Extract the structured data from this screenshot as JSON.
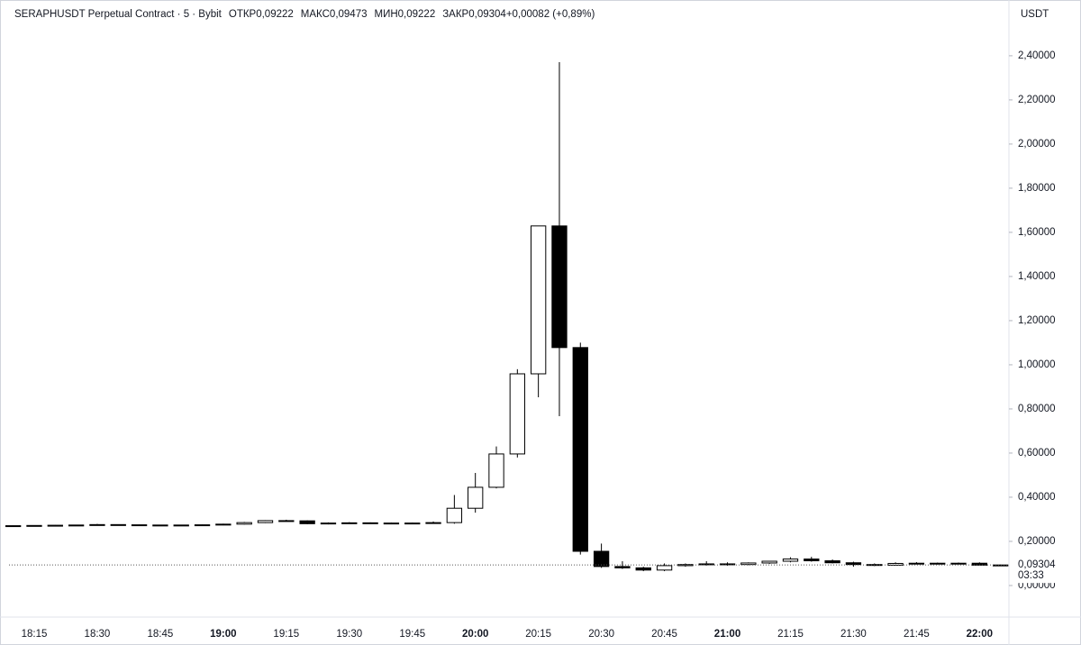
{
  "chart_data": {
    "type": "candlestick",
    "title": "SERAPHUSDT Perpetual Contract · 5 · Bybit",
    "ohlc_header": [
      {
        "label": "ОТКР",
        "value": "0,09222"
      },
      {
        "label": "МАКС",
        "value": "0,09473"
      },
      {
        "label": "МИН",
        "value": "0,09222"
      },
      {
        "label": "ЗАКР",
        "value": "0,09304"
      },
      {
        "label": "",
        "value": "+0,00082 (+0,89%)"
      }
    ],
    "currency": "USDT",
    "up_color": "#ffffff",
    "down_color": "#000000",
    "x": [
      "18:10",
      "18:15",
      "18:20",
      "18:25",
      "18:30",
      "18:35",
      "18:40",
      "18:45",
      "18:50",
      "18:55",
      "19:00",
      "19:05",
      "19:10",
      "19:15",
      "19:20",
      "19:25",
      "19:30",
      "19:35",
      "19:40",
      "19:45",
      "19:50",
      "19:55",
      "20:00",
      "20:05",
      "20:10",
      "20:15",
      "20:20",
      "20:25",
      "20:30",
      "20:35",
      "20:40",
      "20:45",
      "20:50",
      "20:55",
      "21:00",
      "21:05",
      "21:10",
      "21:15",
      "21:20",
      "21:25",
      "21:30",
      "21:35",
      "21:40",
      "21:45",
      "21:50",
      "21:55",
      "22:00",
      "22:05"
    ],
    "open": [
      0.27,
      0.271,
      0.272,
      0.273,
      0.274,
      0.276,
      0.275,
      0.274,
      0.273,
      0.274,
      0.275,
      0.278,
      0.285,
      0.294,
      0.293,
      0.28,
      0.283,
      0.284,
      0.283,
      0.282,
      0.283,
      0.285,
      0.35,
      0.445,
      0.596,
      0.959,
      1.629,
      1.078,
      0.155,
      0.086,
      0.08,
      0.07,
      0.09,
      0.095,
      0.098,
      0.095,
      0.102,
      0.11,
      0.12,
      0.112,
      0.103,
      0.095,
      0.092,
      0.1,
      0.101,
      0.099,
      0.101,
      0.09222
    ],
    "high": [
      0.272,
      0.273,
      0.274,
      0.275,
      0.279,
      0.277,
      0.276,
      0.275,
      0.275,
      0.276,
      0.28,
      0.288,
      0.296,
      0.298,
      0.295,
      0.286,
      0.287,
      0.286,
      0.285,
      0.285,
      0.29,
      0.41,
      0.51,
      0.63,
      0.98,
      1.629,
      2.371,
      1.1,
      0.19,
      0.11,
      0.085,
      0.1,
      0.1,
      0.11,
      0.105,
      0.105,
      0.112,
      0.128,
      0.13,
      0.118,
      0.108,
      0.1,
      0.105,
      0.106,
      0.104,
      0.104,
      0.105,
      0.09473
    ],
    "low": [
      0.268,
      0.269,
      0.27,
      0.271,
      0.272,
      0.273,
      0.272,
      0.272,
      0.271,
      0.272,
      0.273,
      0.276,
      0.283,
      0.29,
      0.278,
      0.277,
      0.28,
      0.281,
      0.28,
      0.28,
      0.281,
      0.28,
      0.33,
      0.44,
      0.58,
      0.853,
      0.767,
      0.14,
      0.08,
      0.075,
      0.065,
      0.065,
      0.085,
      0.09,
      0.09,
      0.092,
      0.098,
      0.105,
      0.108,
      0.1,
      0.085,
      0.088,
      0.09,
      0.096,
      0.095,
      0.096,
      0.092,
      0.09222
    ],
    "close": [
      0.271,
      0.272,
      0.273,
      0.274,
      0.276,
      0.275,
      0.274,
      0.273,
      0.274,
      0.275,
      0.278,
      0.285,
      0.294,
      0.293,
      0.28,
      0.283,
      0.284,
      0.283,
      0.282,
      0.283,
      0.285,
      0.35,
      0.445,
      0.596,
      0.959,
      1.629,
      1.078,
      0.155,
      0.086,
      0.08,
      0.07,
      0.09,
      0.095,
      0.098,
      0.095,
      0.102,
      0.11,
      0.12,
      0.112,
      0.103,
      0.095,
      0.092,
      0.1,
      0.101,
      0.099,
      0.101,
      0.09222,
      0.09304
    ],
    "xlim": [
      "18:09",
      "22:07"
    ],
    "xticks": [
      "18:15",
      "18:30",
      "18:45",
      "19:00",
      "19:15",
      "19:30",
      "19:45",
      "20:00",
      "20:15",
      "20:30",
      "20:45",
      "21:00",
      "21:15",
      "21:30",
      "21:45",
      "22:00"
    ],
    "ylim": [
      -0.143,
      2.571
    ],
    "yticks": [
      {
        "value": 0,
        "label": "0,00000"
      },
      {
        "value": 0.2,
        "label": "0,20000"
      },
      {
        "value": 0.4,
        "label": "0,40000"
      },
      {
        "value": 0.6,
        "label": "0,60000"
      },
      {
        "value": 0.8,
        "label": "0,80000"
      },
      {
        "value": 1,
        "label": "1,00000"
      },
      {
        "value": 1.2,
        "label": "1,20000"
      },
      {
        "value": 1.4,
        "label": "1,40000"
      },
      {
        "value": 1.6,
        "label": "1,60000"
      },
      {
        "value": 1.8,
        "label": "1,80000"
      },
      {
        "value": 2,
        "label": "2,00000"
      },
      {
        "value": 2.2,
        "label": "2,20000"
      },
      {
        "value": 2.4,
        "label": "2,40000"
      }
    ],
    "current_price": {
      "value": 0.09304,
      "label": "0,09304"
    },
    "countdown": "03:33"
  }
}
